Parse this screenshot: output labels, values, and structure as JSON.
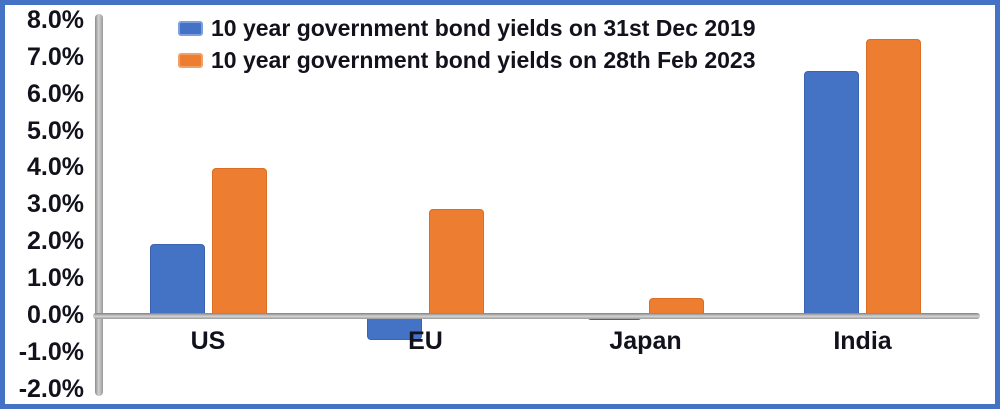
{
  "chart_data": {
    "type": "bar",
    "title": "",
    "categories": [
      "US",
      "EU",
      "Japan",
      "India"
    ],
    "series": [
      {
        "name": "10 year government bond yields on 31st Dec 2019",
        "color": "#4472C4",
        "values": [
          1.95,
          -0.65,
          -0.1,
          6.65
        ]
      },
      {
        "name": "10 year government bond yields on 28th Feb 2023",
        "color": "#ED7D31",
        "values": [
          4.0,
          2.9,
          0.5,
          7.5
        ]
      }
    ],
    "xlabel": "",
    "ylabel": "",
    "ylim": [
      -2.0,
      8.0
    ],
    "ytick_step": 1.0,
    "y_ticks": [
      "8.0%",
      "7.0%",
      "6.0%",
      "5.0%",
      "4.0%",
      "3.0%",
      "2.0%",
      "1.0%",
      "0.0%",
      "-1.0%",
      "-2.0%"
    ],
    "legend_position": "top",
    "grid": false
  },
  "colors": {
    "frame_border": "#4472C4",
    "axis_line": "#A6A6A6",
    "text": "#12121C",
    "series_2019": "#4472C4",
    "series_2023": "#ED7D31",
    "background": "#FFFFFF"
  }
}
